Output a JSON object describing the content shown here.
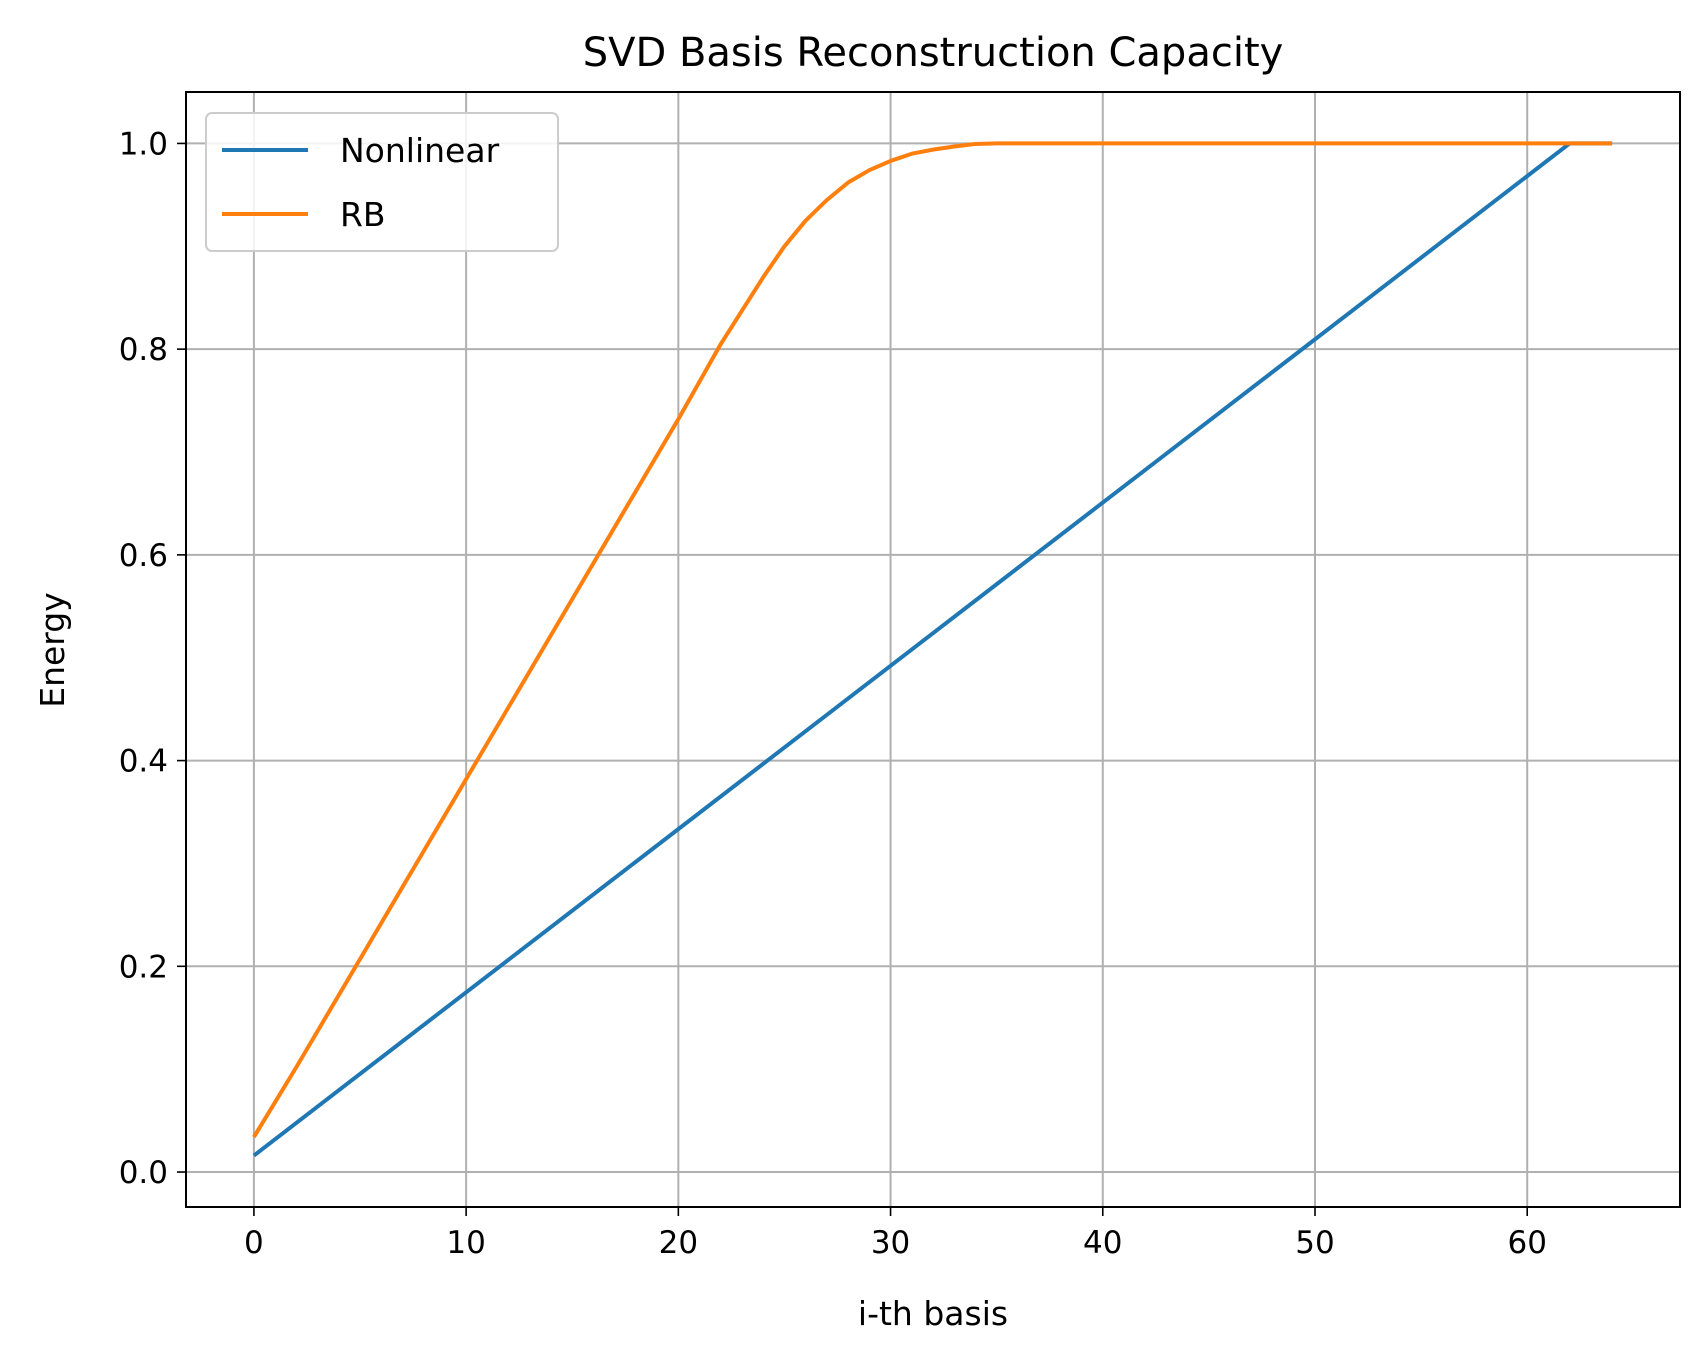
{
  "chart_data": {
    "type": "line",
    "title": "SVD Basis Reconstruction Capacity",
    "xlabel": "i-th basis",
    "ylabel": "Energy",
    "xlim": [
      -3.2,
      67.2
    ],
    "ylim": [
      -0.034,
      1.05
    ],
    "xticks": [
      0,
      10,
      20,
      30,
      40,
      50,
      60
    ],
    "xtick_labels": [
      "0",
      "10",
      "20",
      "30",
      "40",
      "50",
      "60"
    ],
    "yticks": [
      0.0,
      0.2,
      0.4,
      0.6,
      0.8,
      1.0
    ],
    "ytick_labels": [
      "0.0",
      "0.2",
      "0.4",
      "0.6",
      "0.8",
      "1.0"
    ],
    "grid": true,
    "legend": "upper-left",
    "series": [
      {
        "name": "Nonlinear",
        "color": "#1f77b4",
        "x": [
          0,
          62,
          64
        ],
        "y": [
          0.016,
          1.0,
          1.0
        ]
      },
      {
        "name": "RB",
        "color": "#ff7f0e",
        "x": [
          0,
          2,
          4,
          6,
          8,
          10,
          12,
          14,
          16,
          18,
          20,
          22,
          24,
          25,
          26,
          27,
          28,
          29,
          30,
          31,
          32,
          33,
          34,
          35,
          40,
          50,
          60,
          64
        ],
        "y": [
          0.034,
          0.102,
          0.172,
          0.242,
          0.312,
          0.382,
          0.452,
          0.522,
          0.592,
          0.662,
          0.732,
          0.805,
          0.87,
          0.9,
          0.925,
          0.945,
          0.962,
          0.974,
          0.983,
          0.99,
          0.994,
          0.997,
          0.9995,
          1.0,
          1.0,
          1.0,
          1.0,
          1.0
        ]
      }
    ]
  }
}
